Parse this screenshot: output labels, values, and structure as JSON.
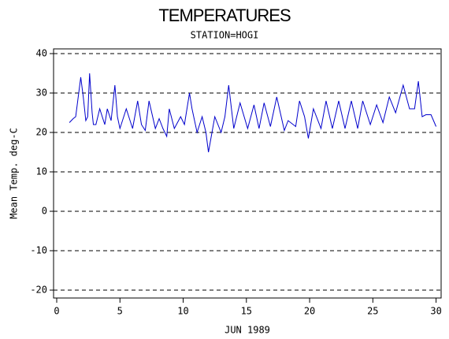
{
  "chart_data": {
    "type": "line",
    "title": "TEMPERATURES",
    "subtitle": "STATION=HOGI",
    "x_label": "JUN 1989",
    "y_label": "Mean Temp. deg-C",
    "color": "#0000cc",
    "x": [
      1.0,
      1.3,
      1.5,
      1.9,
      2.1,
      2.3,
      2.45,
      2.6,
      2.8,
      2.9,
      3.1,
      3.4,
      3.6,
      3.8,
      4.0,
      4.3,
      4.6,
      4.8,
      5.0,
      5.5,
      6.0,
      6.4,
      6.7,
      7.0,
      7.3,
      7.8,
      8.1,
      8.4,
      8.7,
      8.9,
      9.3,
      9.8,
      10.1,
      10.5,
      10.7,
      11.1,
      11.5,
      11.8,
      12.0,
      12.5,
      13.0,
      13.3,
      13.6,
      14.0,
      14.5,
      15.1,
      15.6,
      16.0,
      16.4,
      16.9,
      17.4,
      18.0,
      18.3,
      18.9,
      19.2,
      19.6,
      19.9,
      20.3,
      20.9,
      21.3,
      21.8,
      22.3,
      22.8,
      23.3,
      23.8,
      24.2,
      24.8,
      25.3,
      25.8,
      26.3,
      26.8,
      27.4,
      27.9,
      28.3,
      28.6,
      28.9,
      29.2,
      29.6,
      30.0
    ],
    "values": [
      22.5,
      23.5,
      24,
      34,
      29,
      23,
      24,
      35,
      25,
      22,
      22,
      26,
      24,
      22,
      26,
      23,
      32,
      24,
      21,
      26,
      21,
      28,
      22,
      20.5,
      28,
      21,
      23.5,
      21,
      19,
      26,
      21,
      24,
      22,
      30,
      26,
      20,
      24,
      20,
      15,
      24,
      20,
      24,
      32,
      21,
      27.5,
      21,
      27,
      21,
      27.5,
      21.5,
      29,
      20.5,
      23,
      21.5,
      28,
      24,
      18.5,
      26,
      21,
      28,
      21,
      28,
      21,
      28,
      21,
      28,
      22,
      27,
      22.5,
      29,
      25,
      32,
      26,
      26,
      33,
      24,
      24.5,
      24.5,
      21.5
    ],
    "xlim": [
      -0.25,
      30.4
    ],
    "xticks": [
      0,
      5,
      10,
      15,
      20,
      25,
      30
    ],
    "ylim": [
      -22,
      41.2
    ],
    "yticks": [
      -20,
      -10,
      0,
      10,
      20,
      30,
      40
    ],
    "grid": true
  }
}
